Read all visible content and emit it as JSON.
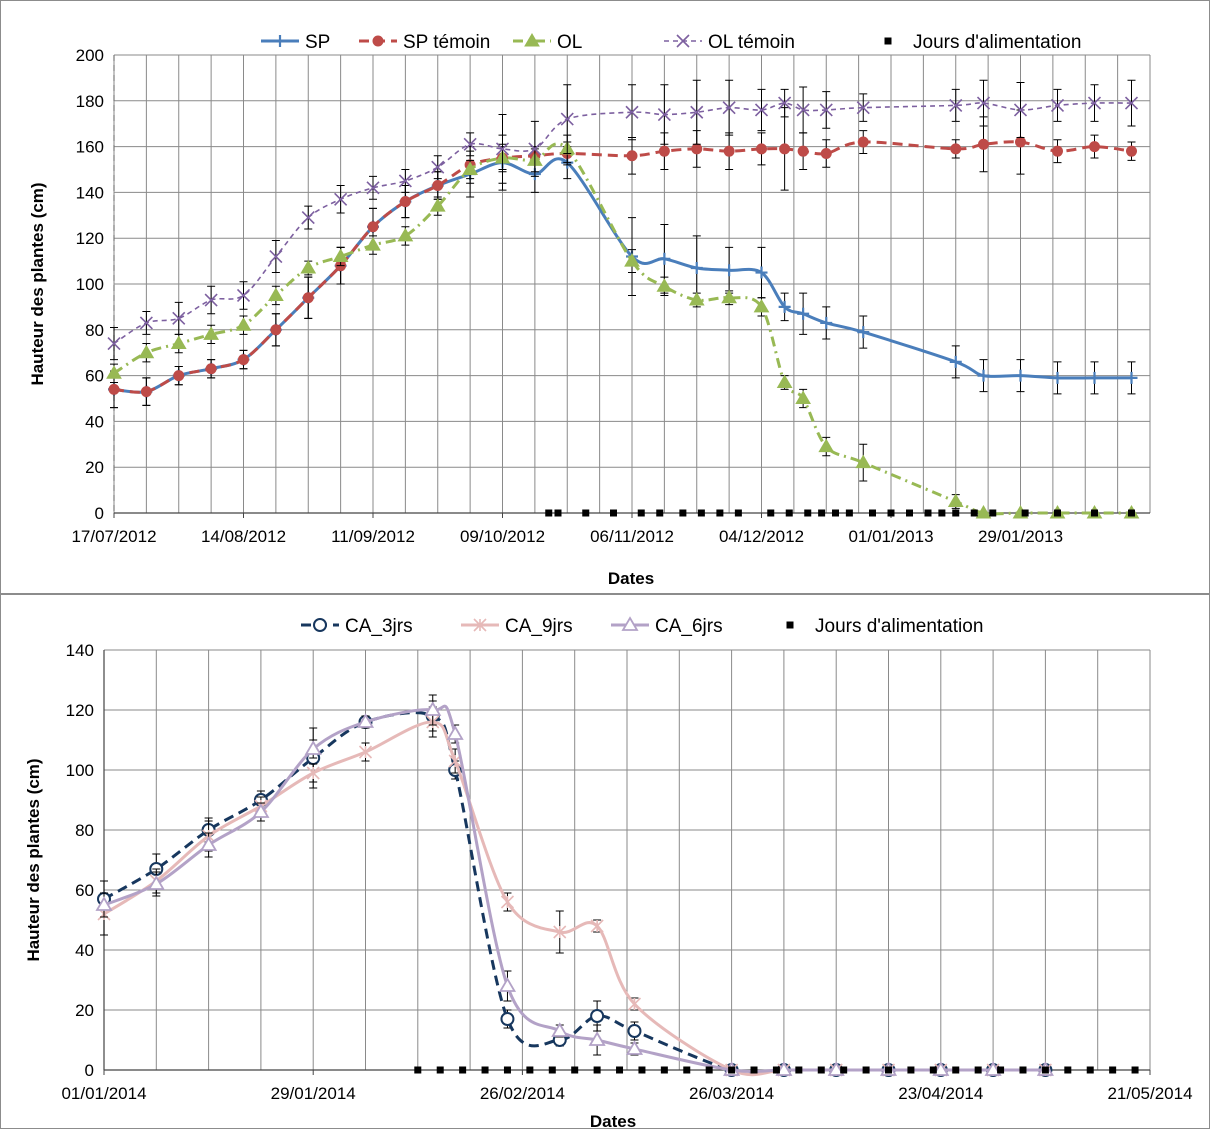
{
  "chart_data": [
    {
      "type": "line",
      "xlabel": "Dates",
      "ylabel": "Hauteur des plantes (cm)",
      "ylim": [
        0,
        200
      ],
      "yticks": [
        0,
        20,
        40,
        60,
        80,
        100,
        120,
        140,
        160,
        180,
        200
      ],
      "xlim": [
        "2012-07-17",
        "2013-02-26"
      ],
      "xtick_labels": [
        "17/07/2012",
        "14/08/2012",
        "11/09/2012",
        "09/10/2012",
        "06/11/2012",
        "04/12/2012",
        "01/01/2013",
        "29/01/2013"
      ],
      "grid": true,
      "legend_position": "top",
      "series": [
        {
          "name": "SP",
          "color": "#4a7ebb",
          "marker": "plus",
          "dash": "solid",
          "x": [
            "2012-07-17",
            "2012-07-24",
            "2012-07-31",
            "2012-08-07",
            "2012-08-14",
            "2012-08-21",
            "2012-08-28",
            "2012-09-04",
            "2012-09-11",
            "2012-09-18",
            "2012-09-25",
            "2012-10-02",
            "2012-10-09",
            "2012-10-16",
            "2012-10-23",
            "2012-11-06",
            "2012-11-13",
            "2012-11-20",
            "2012-11-27",
            "2012-12-04",
            "2012-12-09",
            "2012-12-13",
            "2012-12-18",
            "2012-12-26",
            "2013-01-15",
            "2013-01-21",
            "2013-01-29",
            "2013-02-06",
            "2013-02-14",
            "2013-02-22"
          ],
          "values": [
            54,
            53,
            60,
            63,
            67,
            80,
            94,
            108,
            125,
            136,
            143,
            148,
            153,
            148,
            153,
            112,
            111,
            107,
            106,
            105,
            90,
            87,
            83,
            79,
            66,
            60,
            60,
            59,
            59,
            59
          ],
          "err": [
            8,
            6,
            4,
            4,
            4,
            7,
            9,
            8,
            8,
            7,
            6,
            10,
            12,
            8,
            7,
            17,
            15,
            14,
            10,
            11,
            6,
            9,
            7,
            7,
            7,
            7,
            7,
            7,
            7,
            7
          ]
        },
        {
          "name": "SP témoin",
          "color": "#be4b48",
          "marker": "circle",
          "dash": "dash",
          "x": [
            "2012-07-17",
            "2012-07-24",
            "2012-07-31",
            "2012-08-07",
            "2012-08-14",
            "2012-08-21",
            "2012-08-28",
            "2012-09-04",
            "2012-09-11",
            "2012-09-18",
            "2012-09-25",
            "2012-10-02",
            "2012-10-09",
            "2012-10-16",
            "2012-10-23",
            "2012-11-06",
            "2012-11-13",
            "2012-11-20",
            "2012-11-27",
            "2012-12-04",
            "2012-12-09",
            "2012-12-13",
            "2012-12-18",
            "2012-12-26",
            "2013-01-15",
            "2013-01-21",
            "2013-01-29",
            "2013-02-06",
            "2013-02-14",
            "2013-02-22"
          ],
          "values": [
            54,
            53,
            60,
            63,
            67,
            80,
            94,
            108,
            125,
            136,
            143,
            152,
            155,
            156,
            157,
            156,
            158,
            159,
            158,
            159,
            159,
            158,
            157,
            162,
            159,
            161,
            162,
            158,
            160,
            158
          ],
          "err": [
            8,
            6,
            4,
            4,
            4,
            7,
            9,
            8,
            8,
            7,
            6,
            8,
            6,
            4,
            5,
            8,
            8,
            8,
            8,
            7,
            18,
            8,
            6,
            5,
            4,
            12,
            14,
            5,
            5,
            4
          ]
        },
        {
          "name": "OL",
          "color": "#98b954",
          "marker": "triangle",
          "dash": "dashdot",
          "x": [
            "2012-07-17",
            "2012-07-24",
            "2012-07-31",
            "2012-08-07",
            "2012-08-14",
            "2012-08-21",
            "2012-08-28",
            "2012-09-04",
            "2012-09-11",
            "2012-09-18",
            "2012-09-25",
            "2012-10-02",
            "2012-10-09",
            "2012-10-16",
            "2012-10-23",
            "2012-11-06",
            "2012-11-13",
            "2012-11-20",
            "2012-11-27",
            "2012-12-04",
            "2012-12-09",
            "2012-12-13",
            "2012-12-18",
            "2012-12-26",
            "2013-01-15",
            "2013-01-21",
            "2013-01-29",
            "2013-02-06",
            "2013-02-14",
            "2013-02-22"
          ],
          "values": [
            61,
            70,
            74,
            78,
            82,
            95,
            107,
            112,
            117,
            121,
            134,
            150,
            155,
            154,
            159,
            110,
            99,
            93,
            94,
            90,
            57,
            50,
            29,
            22,
            5,
            0,
            0,
            0,
            0,
            0
          ],
          "err": [
            4,
            4,
            4,
            4,
            4,
            4,
            3,
            4,
            4,
            4,
            4,
            4,
            5,
            5,
            6,
            5,
            4,
            3,
            3,
            4,
            3,
            4,
            4,
            8,
            3,
            0,
            0,
            0,
            0,
            0
          ]
        },
        {
          "name": "OL témoin",
          "color": "#7d60a0",
          "marker": "x",
          "dash": "shortdash",
          "x": [
            "2012-07-17",
            "2012-07-24",
            "2012-07-31",
            "2012-08-07",
            "2012-08-14",
            "2012-08-21",
            "2012-08-28",
            "2012-09-04",
            "2012-09-11",
            "2012-09-18",
            "2012-09-25",
            "2012-10-02",
            "2012-10-09",
            "2012-10-16",
            "2012-10-23",
            "2012-11-06",
            "2012-11-13",
            "2012-11-20",
            "2012-11-27",
            "2012-12-04",
            "2012-12-09",
            "2012-12-13",
            "2012-12-18",
            "2012-12-26",
            "2013-01-15",
            "2013-01-21",
            "2013-01-29",
            "2013-02-06",
            "2013-02-14",
            "2013-02-22"
          ],
          "values": [
            74,
            83,
            85,
            93,
            95,
            112,
            129,
            137,
            142,
            145,
            151,
            161,
            159,
            159,
            172,
            175,
            174,
            175,
            177,
            176,
            179,
            176,
            176,
            177,
            178,
            179,
            176,
            178,
            179,
            179
          ],
          "err": [
            7,
            5,
            7,
            6,
            6,
            7,
            5,
            6,
            5,
            5,
            5,
            5,
            15,
            12,
            15,
            12,
            13,
            14,
            12,
            9,
            6,
            10,
            8,
            6,
            7,
            10,
            12,
            7,
            8,
            10
          ]
        },
        {
          "name": "Jours d'alimentation",
          "color": "#000000",
          "marker": "square",
          "dash": "none",
          "x": [
            "2012-10-19",
            "2012-10-21",
            "2012-10-27",
            "2012-11-02",
            "2012-11-08",
            "2012-11-12",
            "2012-11-17",
            "2012-11-21",
            "2012-11-25",
            "2012-11-29",
            "2012-12-06",
            "2012-12-10",
            "2012-12-14",
            "2012-12-17",
            "2012-12-20",
            "2012-12-23",
            "2012-12-28",
            "2013-01-01",
            "2013-01-05",
            "2013-01-09",
            "2013-01-12",
            "2013-01-15",
            "2013-01-19",
            "2013-01-23",
            "2013-01-30",
            "2013-02-06",
            "2013-02-14",
            "2013-02-22"
          ],
          "values": [
            0,
            0,
            0,
            0,
            0,
            0,
            0,
            0,
            0,
            0,
            0,
            0,
            0,
            0,
            0,
            0,
            0,
            0,
            0,
            0,
            0,
            0,
            0,
            0,
            0,
            0,
            0,
            0
          ]
        }
      ]
    },
    {
      "type": "line",
      "xlabel": "Dates",
      "ylabel": "Hauteur des plantes (cm)",
      "ylim": [
        0,
        140
      ],
      "yticks": [
        0,
        20,
        40,
        60,
        80,
        100,
        120,
        140
      ],
      "xlim": [
        "2014-01-01",
        "2014-05-21"
      ],
      "xtick_labels": [
        "01/01/2014",
        "29/01/2014",
        "26/02/2014",
        "26/03/2014",
        "23/04/2014",
        "21/05/2014"
      ],
      "grid": true,
      "legend_position": "top",
      "series": [
        {
          "name": "CA_3jrs",
          "color": "#17375e",
          "marker": "circle-open",
          "dash": "dash",
          "x": [
            "2014-01-01",
            "2014-01-08",
            "2014-01-15",
            "2014-01-22",
            "2014-01-29",
            "2014-02-05",
            "2014-02-14",
            "2014-02-17",
            "2014-02-24",
            "2014-03-03",
            "2014-03-08",
            "2014-03-13",
            "2014-03-26",
            "2014-04-02",
            "2014-04-09",
            "2014-04-16",
            "2014-04-23",
            "2014-04-30",
            "2014-05-07"
          ],
          "values": [
            57,
            67,
            80,
            90,
            104,
            116,
            118,
            100,
            17,
            10,
            18,
            13,
            0,
            0,
            0,
            0,
            0,
            0,
            0
          ],
          "err": [
            6,
            5,
            4,
            3,
            10,
            2,
            5,
            3,
            3,
            2,
            5,
            3,
            0,
            0,
            0,
            0,
            0,
            0,
            0
          ]
        },
        {
          "name": "CA_9jrs",
          "color": "#e6b9b8",
          "marker": "star",
          "dash": "solid",
          "x": [
            "2014-01-01",
            "2014-01-08",
            "2014-01-15",
            "2014-01-22",
            "2014-01-29",
            "2014-02-05",
            "2014-02-14",
            "2014-02-17",
            "2014-02-24",
            "2014-03-03",
            "2014-03-08",
            "2014-03-13",
            "2014-03-26",
            "2014-04-02",
            "2014-04-09",
            "2014-04-16",
            "2014-04-23",
            "2014-04-30",
            "2014-05-07"
          ],
          "values": [
            52,
            63,
            78,
            88,
            99,
            106,
            116,
            103,
            56,
            46,
            48,
            22,
            0,
            0,
            0,
            0,
            0,
            0,
            0
          ],
          "err": [
            7,
            4,
            5,
            3,
            3,
            3,
            5,
            4,
            3,
            7,
            2,
            2,
            0,
            0,
            0,
            0,
            0,
            0,
            0
          ]
        },
        {
          "name": "CA_6jrs",
          "color": "#b3a2c7",
          "marker": "triangle-open",
          "dash": "solid",
          "x": [
            "2014-01-01",
            "2014-01-08",
            "2014-01-15",
            "2014-01-22",
            "2014-01-29",
            "2014-02-05",
            "2014-02-14",
            "2014-02-17",
            "2014-02-24",
            "2014-03-03",
            "2014-03-08",
            "2014-03-13",
            "2014-03-26",
            "2014-04-02",
            "2014-04-09",
            "2014-04-16",
            "2014-04-23",
            "2014-04-30",
            "2014-05-07"
          ],
          "values": [
            55,
            62,
            75,
            86,
            107,
            116,
            120,
            112,
            28,
            13,
            10,
            7,
            0,
            0,
            0,
            0,
            0,
            0,
            0
          ],
          "err": [
            4,
            4,
            4,
            3,
            3,
            2,
            5,
            3,
            5,
            2,
            5,
            2,
            0,
            0,
            0,
            0,
            0,
            0,
            0
          ]
        },
        {
          "name": "Jours d'alimentation",
          "color": "#000000",
          "marker": "square",
          "dash": "none",
          "x": [
            "2014-02-12",
            "2014-02-15",
            "2014-02-18",
            "2014-02-21",
            "2014-02-24",
            "2014-02-27",
            "2014-03-02",
            "2014-03-05",
            "2014-03-08",
            "2014-03-11",
            "2014-03-14",
            "2014-03-17",
            "2014-03-20",
            "2014-03-23",
            "2014-03-26",
            "2014-03-29",
            "2014-04-01",
            "2014-04-04",
            "2014-04-07",
            "2014-04-10",
            "2014-04-13",
            "2014-04-16",
            "2014-04-19",
            "2014-04-22",
            "2014-04-25",
            "2014-04-28",
            "2014-05-01",
            "2014-05-04",
            "2014-05-07",
            "2014-05-10",
            "2014-05-13",
            "2014-05-16",
            "2014-05-19"
          ],
          "values": [
            0,
            0,
            0,
            0,
            0,
            0,
            0,
            0,
            0,
            0,
            0,
            0,
            0,
            0,
            0,
            0,
            0,
            0,
            0,
            0,
            0,
            0,
            0,
            0,
            0,
            0,
            0,
            0,
            0,
            0,
            0,
            0,
            0
          ]
        }
      ]
    }
  ]
}
